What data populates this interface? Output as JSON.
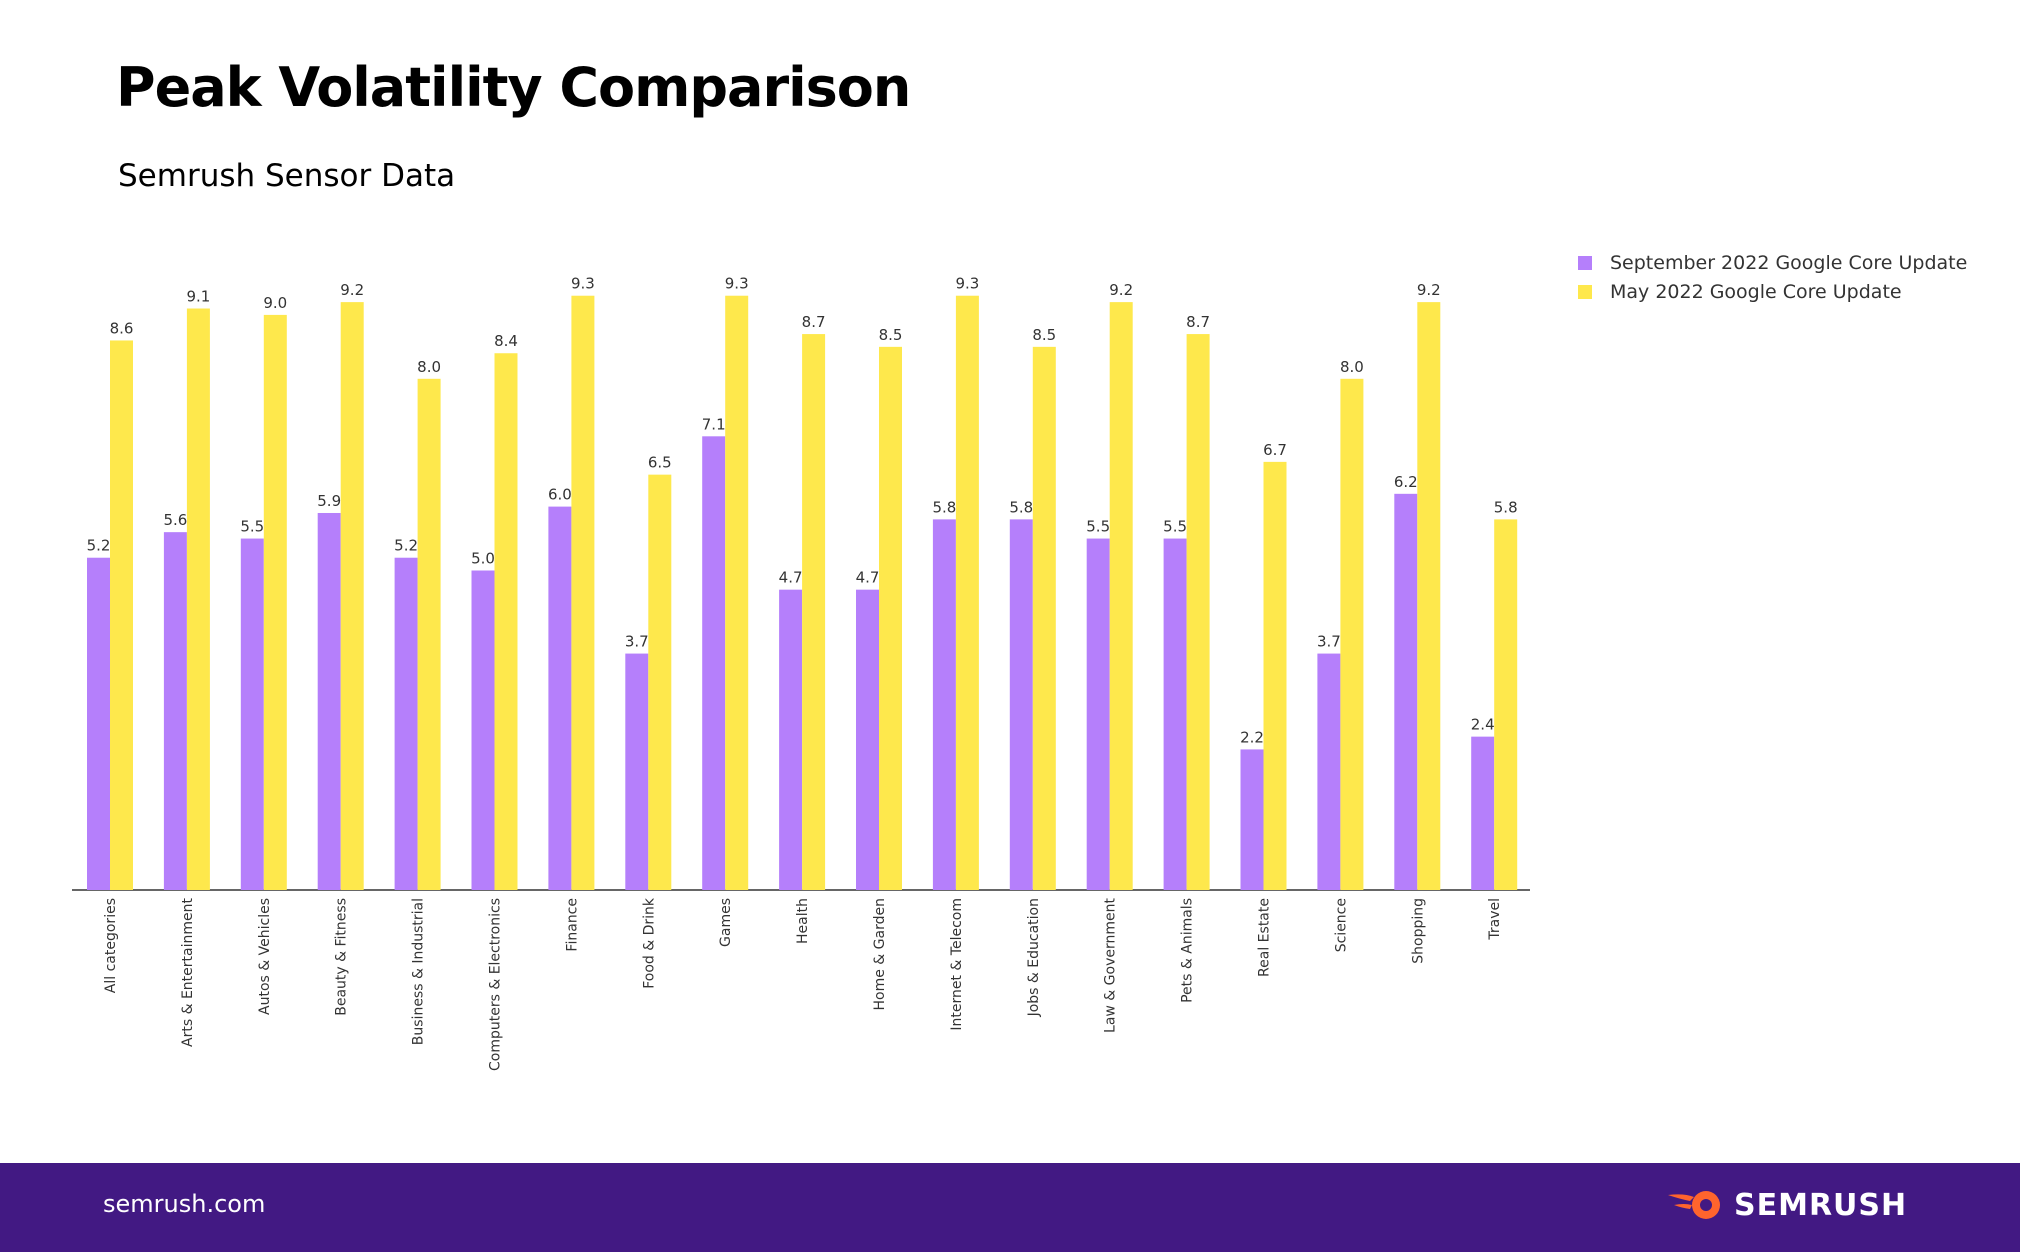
{
  "header": {
    "title": "Peak Volatility Comparison",
    "subtitle": "Semrush Sensor Data"
  },
  "footer": {
    "url": "semrush.com",
    "brand": "SEMRUSH"
  },
  "colors": {
    "series1": "#b57ffb",
    "series2": "#fee84c",
    "footer_bg": "#421983",
    "brand_accent": "#ff642d"
  },
  "chart_data": {
    "type": "bar",
    "title": "Peak Volatility Comparison",
    "subtitle": "Semrush Sensor Data",
    "xlabel": "",
    "ylabel": "",
    "ylim": [
      0,
      10
    ],
    "grid": false,
    "legend_position": "top-right",
    "categories": [
      "All categories",
      "Arts & Entertainment",
      "Autos & Vehicles",
      "Beauty & Fitness",
      "Business & Industrial",
      "Computers & Electronics",
      "Finance",
      "Food & Drink",
      "Games",
      "Health",
      "Home & Garden",
      "Internet & Telecom",
      "Jobs & Education",
      "Law & Government",
      "Pets & Animals",
      "Real Estate",
      "Science",
      "Shopping",
      "Travel"
    ],
    "series": [
      {
        "name": "September 2022 Google Core Update",
        "color": "#b57ffb",
        "values": [
          5.2,
          5.6,
          5.5,
          5.9,
          5.2,
          5.0,
          6.0,
          3.7,
          7.1,
          4.7,
          4.7,
          5.8,
          5.8,
          5.5,
          5.5,
          2.2,
          3.7,
          6.2,
          2.4
        ]
      },
      {
        "name": "May 2022 Google Core Update",
        "color": "#fee84c",
        "values": [
          8.6,
          9.1,
          9.0,
          9.2,
          8.0,
          8.4,
          9.3,
          6.5,
          9.3,
          8.7,
          8.5,
          9.3,
          8.5,
          9.2,
          8.7,
          6.7,
          8.0,
          9.2,
          5.8
        ]
      }
    ]
  }
}
